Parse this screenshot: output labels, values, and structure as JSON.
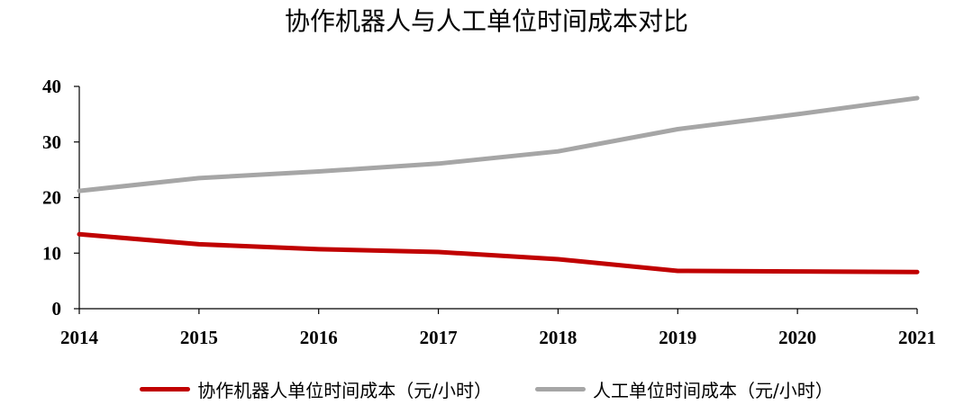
{
  "chart_data": {
    "type": "line",
    "title": "协作机器人与人工单位时间成本对比",
    "xlabel": "",
    "ylabel": "",
    "categories": [
      "2014",
      "2015",
      "2016",
      "2017",
      "2018",
      "2019",
      "2020",
      "2021"
    ],
    "ylim": [
      0,
      40
    ],
    "yticks": [
      "0",
      "10",
      "20",
      "30",
      "40"
    ],
    "grid": false,
    "legend_position": "bottom",
    "series": [
      {
        "name": "协作机器人单位时间成本（元/小时）",
        "color": "#C00000",
        "values": [
          13.4,
          11.6,
          10.7,
          10.2,
          8.9,
          6.8,
          6.7,
          6.6
        ]
      },
      {
        "name": "人工单位时间成本（元/小时）",
        "color": "#A6A6A6",
        "values": [
          21.2,
          23.5,
          24.7,
          26.1,
          28.3,
          32.3,
          35.0,
          37.9
        ]
      }
    ]
  }
}
